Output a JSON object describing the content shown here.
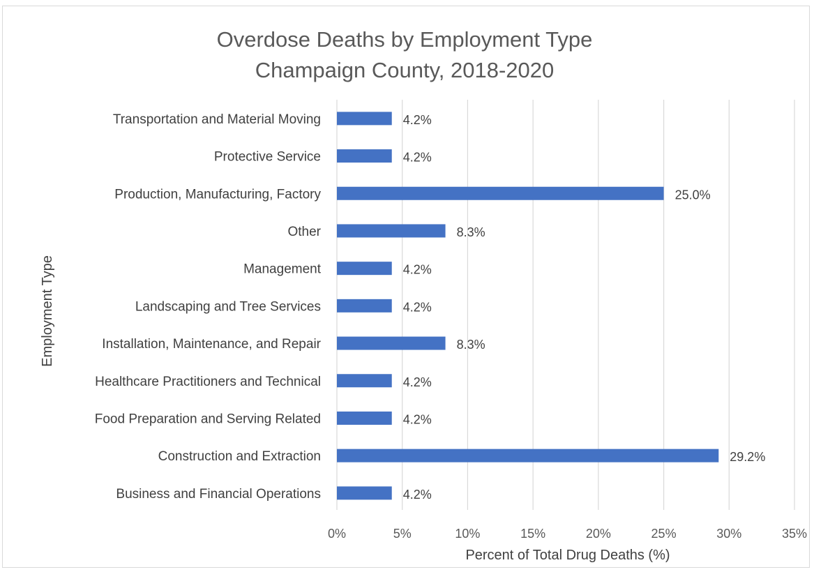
{
  "chart_data": {
    "type": "bar",
    "orientation": "horizontal",
    "title": "Overdose Deaths by Employment Type",
    "subtitle": "Champaign County, 2018-2020",
    "xlabel": "Percent of Total Drug Deaths (%)",
    "ylabel": "Employment Type",
    "categories": [
      "Transportation and Material Moving",
      "Protective Service",
      "Production, Manufacturing, Factory",
      "Other",
      "Management",
      "Landscaping and Tree Services",
      "Installation, Maintenance, and Repair",
      "Healthcare Practitioners and Technical",
      "Food Preparation and Serving Related",
      "Construction and Extraction",
      "Business and Financial Operations"
    ],
    "values": [
      4.2,
      4.2,
      25.0,
      8.3,
      4.2,
      4.2,
      8.3,
      4.2,
      4.2,
      29.2,
      4.2
    ],
    "data_labels": [
      "4.2%",
      "4.2%",
      "25.0%",
      "8.3%",
      "4.2%",
      "4.2%",
      "8.3%",
      "4.2%",
      "4.2%",
      "29.2%",
      "4.2%"
    ],
    "xlim": [
      0,
      35
    ],
    "xticks": [
      0,
      5,
      10,
      15,
      20,
      25,
      30,
      35
    ],
    "xtick_labels": [
      "0%",
      "5%",
      "10%",
      "15%",
      "20%",
      "25%",
      "30%",
      "35%"
    ],
    "grid": "vertical",
    "legend": "none",
    "bar_color": "#4472C4",
    "grid_color": "#d9d9d9"
  }
}
